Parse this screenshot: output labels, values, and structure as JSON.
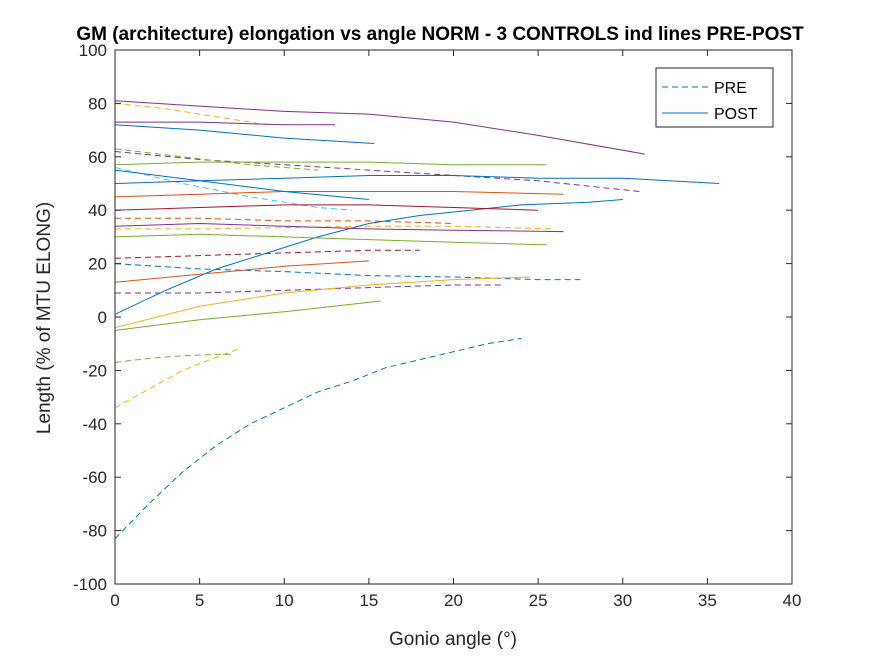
{
  "chart_data": {
    "type": "line",
    "title": "GM (architecture) elongation vs angle NORM - 3 CONTROLS ind lines PRE-POST",
    "xlabel": "Gonio angle (°)",
    "ylabel": "Length (% of MTU ELONG)",
    "xlim": [
      0,
      40
    ],
    "ylim": [
      -100,
      100
    ],
    "xticks": [
      "0",
      "5",
      "10",
      "15",
      "20",
      "25",
      "30",
      "35",
      "40"
    ],
    "yticks": [
      "100",
      "80",
      "60",
      "40",
      "20",
      "0",
      "-20",
      "-40",
      "-60",
      "-80",
      "-100"
    ],
    "grid": false,
    "legend_position": "top-right",
    "legend": [
      {
        "label": "PRE",
        "style": "dashed"
      },
      {
        "label": "POST",
        "style": "solid"
      }
    ],
    "series": [
      {
        "style": "dashed",
        "color": "#0072BD",
        "x": [
          0,
          2,
          4,
          6,
          8,
          10,
          12,
          14,
          16,
          18,
          20,
          22,
          24
        ],
        "y": [
          -83,
          -70,
          -58,
          -48,
          -40,
          -34,
          -28,
          -24,
          -19,
          -16,
          -13,
          -10,
          -8
        ]
      },
      {
        "style": "dashed",
        "color": "#EDB120",
        "x": [
          0,
          2,
          4,
          6,
          7.3
        ],
        "y": [
          -34,
          -27,
          -20,
          -15,
          -12
        ]
      },
      {
        "style": "dashed",
        "color": "#77AC30",
        "x": [
          0,
          2,
          4,
          6,
          7
        ],
        "y": [
          -17,
          -15.5,
          -14.5,
          -14,
          -14
        ]
      },
      {
        "style": "dashed",
        "color": "#7E2F8E",
        "x": [
          0,
          5,
          10,
          15,
          20,
          23
        ],
        "y": [
          9,
          9,
          10,
          11,
          12,
          12
        ]
      },
      {
        "style": "dashed",
        "color": "#0072BD",
        "x": [
          0,
          5,
          10,
          15,
          20,
          25,
          27.5
        ],
        "y": [
          20,
          18,
          17,
          15.5,
          15,
          14,
          14
        ]
      },
      {
        "style": "dashed",
        "color": "#A2142F",
        "x": [
          0,
          5,
          10,
          15,
          18
        ],
        "y": [
          22,
          23,
          24,
          25,
          25
        ]
      },
      {
        "style": "dashed",
        "color": "#EDB120",
        "x": [
          0,
          5,
          10,
          15,
          20,
          26
        ],
        "y": [
          33,
          33,
          33.5,
          34,
          34,
          33
        ]
      },
      {
        "style": "dashed",
        "color": "#D95319",
        "x": [
          0,
          5,
          10,
          15,
          20
        ],
        "y": [
          37,
          37,
          36,
          36,
          35
        ]
      },
      {
        "style": "dashed",
        "color": "#4DBEEE",
        "x": [
          0,
          4,
          8,
          12,
          14
        ],
        "y": [
          56,
          50,
          45,
          41,
          40
        ]
      },
      {
        "style": "dashed",
        "color": "#7E2F8E",
        "x": [
          0,
          5,
          10,
          15,
          20,
          25,
          31
        ],
        "y": [
          62,
          59,
          57,
          55,
          53,
          51,
          47
        ]
      },
      {
        "style": "dashed",
        "color": "#EDB120",
        "x": [
          0,
          3,
          6,
          9
        ],
        "y": [
          80,
          78,
          75,
          72
        ]
      },
      {
        "style": "dashed",
        "color": "#77AC30",
        "x": [
          0,
          4,
          8,
          12
        ],
        "y": [
          63,
          60,
          57,
          55
        ]
      },
      {
        "style": "solid",
        "color": "#0072BD",
        "x": [
          0,
          3,
          6,
          9,
          12,
          15,
          18,
          21,
          24,
          28,
          30
        ],
        "y": [
          1,
          10,
          18,
          24,
          30,
          35,
          38,
          40,
          42,
          43,
          44
        ]
      },
      {
        "style": "solid",
        "color": "#77AC30",
        "x": [
          0,
          5,
          10,
          15.7
        ],
        "y": [
          -5,
          -1,
          2,
          6
        ]
      },
      {
        "style": "solid",
        "color": "#EDB120",
        "x": [
          0,
          5,
          10,
          15,
          20,
          24.5
        ],
        "y": [
          -4,
          4,
          9,
          12,
          14,
          15
        ]
      },
      {
        "style": "solid",
        "color": "#D95319",
        "x": [
          0,
          5,
          10,
          15
        ],
        "y": [
          13,
          16,
          19,
          21
        ]
      },
      {
        "style": "solid",
        "color": "#77AC30",
        "x": [
          0,
          5,
          10,
          15,
          20,
          25.5
        ],
        "y": [
          30,
          31,
          30,
          29,
          28,
          27
        ]
      },
      {
        "style": "solid",
        "color": "#7E2F8E",
        "x": [
          0,
          5,
          10,
          15,
          20,
          26.5
        ],
        "y": [
          34,
          35,
          34,
          33,
          32.5,
          32
        ]
      },
      {
        "style": "solid",
        "color": "#A2142F",
        "x": [
          0,
          5,
          10,
          15,
          20,
          25
        ],
        "y": [
          40,
          41,
          42,
          42,
          41,
          40
        ]
      },
      {
        "style": "solid",
        "color": "#0072BD",
        "x": [
          0,
          5,
          10,
          15,
          20,
          25,
          30,
          35.7
        ],
        "y": [
          50,
          51,
          52,
          53,
          53,
          52,
          52,
          50
        ]
      },
      {
        "style": "solid",
        "color": "#D95319",
        "x": [
          0,
          5,
          10,
          15,
          20,
          26.5
        ],
        "y": [
          45,
          46,
          47,
          47,
          47,
          46
        ]
      },
      {
        "style": "solid",
        "color": "#77AC30",
        "x": [
          0,
          5,
          10,
          15,
          20,
          25.5
        ],
        "y": [
          57,
          58,
          58,
          58,
          57,
          57
        ]
      },
      {
        "style": "solid",
        "color": "#7E2F8E",
        "x": [
          0,
          5,
          10,
          15,
          20,
          25,
          31.3
        ],
        "y": [
          81,
          79,
          77,
          76,
          73,
          68,
          61
        ]
      },
      {
        "style": "solid",
        "color": "#0072BD",
        "x": [
          0,
          5,
          10,
          15.3
        ],
        "y": [
          72,
          70,
          67,
          65
        ]
      },
      {
        "style": "solid",
        "color": "#7E2F8E",
        "x": [
          0,
          5,
          10,
          13
        ],
        "y": [
          73,
          73,
          72,
          72
        ]
      },
      {
        "style": "solid",
        "color": "#0072BD",
        "x": [
          0,
          5,
          10,
          15
        ],
        "y": [
          55,
          51,
          47,
          44
        ]
      }
    ]
  }
}
